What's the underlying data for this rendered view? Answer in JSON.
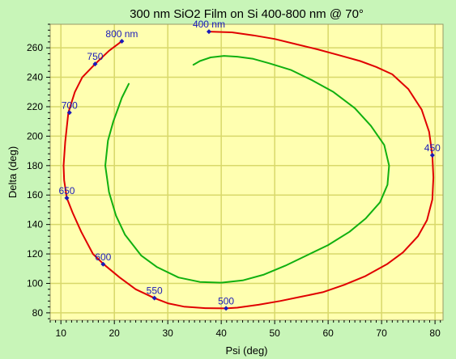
{
  "chart_data": {
    "type": "line",
    "title": "300 nm SiO2 Film on Si 400-800 nm @ 70°",
    "xlabel": "Psi (deg)",
    "ylabel": "Delta (deg)",
    "xlim": [
      8,
      81.5
    ],
    "ylim": [
      75,
      276
    ],
    "xticks": [
      10,
      20,
      30,
      40,
      50,
      60,
      70,
      80
    ],
    "yticks": [
      80,
      100,
      120,
      140,
      160,
      180,
      200,
      220,
      240,
      260
    ],
    "grid": true,
    "colors": {
      "plot_background": "#ffffb0",
      "page_background": "#c8f5b8",
      "grid": "#d8d86a",
      "series_1": "#e00000",
      "series_2": "#10b010",
      "annotation": "#1a1ab8"
    },
    "series": [
      {
        "color": "#e00000",
        "points": [
          [
            37.7,
            271
          ],
          [
            42,
            270.5
          ],
          [
            46,
            268.5
          ],
          [
            50,
            266
          ],
          [
            54,
            262.5
          ],
          [
            58,
            259
          ],
          [
            62,
            255
          ],
          [
            66,
            251
          ],
          [
            69,
            247
          ],
          [
            72,
            242
          ],
          [
            75,
            232
          ],
          [
            77.5,
            218
          ],
          [
            78.9,
            203
          ],
          [
            79.5,
            187
          ],
          [
            79.7,
            172
          ],
          [
            79.5,
            157
          ],
          [
            78.5,
            143
          ],
          [
            76.8,
            132
          ],
          [
            74,
            121
          ],
          [
            71,
            113
          ],
          [
            67,
            105
          ],
          [
            63,
            99
          ],
          [
            59,
            94
          ],
          [
            55,
            91
          ],
          [
            51,
            88
          ],
          [
            47,
            85.5
          ],
          [
            43,
            83.5
          ],
          [
            40.9,
            83
          ],
          [
            37,
            83.2
          ],
          [
            33,
            84.2
          ],
          [
            30,
            86.5
          ],
          [
            27.5,
            90
          ],
          [
            24,
            96
          ],
          [
            21,
            104
          ],
          [
            18,
            113
          ],
          [
            16,
            120
          ],
          [
            13.8,
            135
          ],
          [
            12.2,
            148
          ],
          [
            11.1,
            158
          ],
          [
            10.6,
            170
          ],
          [
            10.5,
            180
          ],
          [
            10.8,
            196
          ],
          [
            11.4,
            216
          ],
          [
            12.6,
            230
          ],
          [
            14,
            240
          ],
          [
            16.4,
            249
          ],
          [
            19,
            258
          ],
          [
            21.4,
            264.5
          ]
        ]
      },
      {
        "color": "#10b010",
        "points": [
          [
            34.8,
            248.5
          ],
          [
            36,
            251
          ],
          [
            38,
            253.5
          ],
          [
            40.5,
            254.5
          ],
          [
            43,
            254
          ],
          [
            46,
            252.5
          ],
          [
            49,
            249.5
          ],
          [
            53,
            245
          ],
          [
            57,
            238
          ],
          [
            61,
            230
          ],
          [
            65,
            219
          ],
          [
            68,
            207
          ],
          [
            70.5,
            194
          ],
          [
            71.4,
            180
          ],
          [
            71.1,
            167
          ],
          [
            69.7,
            155
          ],
          [
            67,
            144
          ],
          [
            64,
            135
          ],
          [
            60,
            126
          ],
          [
            56,
            119
          ],
          [
            52,
            112
          ],
          [
            48,
            106
          ],
          [
            44,
            102
          ],
          [
            40,
            100.5
          ],
          [
            36,
            101
          ],
          [
            32,
            104
          ],
          [
            28,
            111
          ],
          [
            25,
            119
          ],
          [
            22,
            133
          ],
          [
            20.3,
            146
          ],
          [
            19,
            162
          ],
          [
            18.3,
            180
          ],
          [
            18.8,
            197
          ],
          [
            19.8,
            210
          ],
          [
            20.8,
            220
          ],
          [
            21.4,
            226
          ],
          [
            22.7,
            235.5
          ]
        ]
      }
    ],
    "annotations": [
      {
        "text": "400 nm",
        "point": [
          37.7,
          271
        ]
      },
      {
        "text": "450",
        "point": [
          79.5,
          187
        ]
      },
      {
        "text": "500",
        "point": [
          40.9,
          83
        ]
      },
      {
        "text": "550",
        "point": [
          27.5,
          90
        ]
      },
      {
        "text": "600",
        "point": [
          17.9,
          113
        ]
      },
      {
        "text": "650",
        "point": [
          11.1,
          158
        ]
      },
      {
        "text": "700",
        "point": [
          11.6,
          216
        ]
      },
      {
        "text": "750",
        "point": [
          16.4,
          249
        ]
      },
      {
        "text": "800 nm",
        "point": [
          21.4,
          264.5
        ]
      }
    ]
  }
}
